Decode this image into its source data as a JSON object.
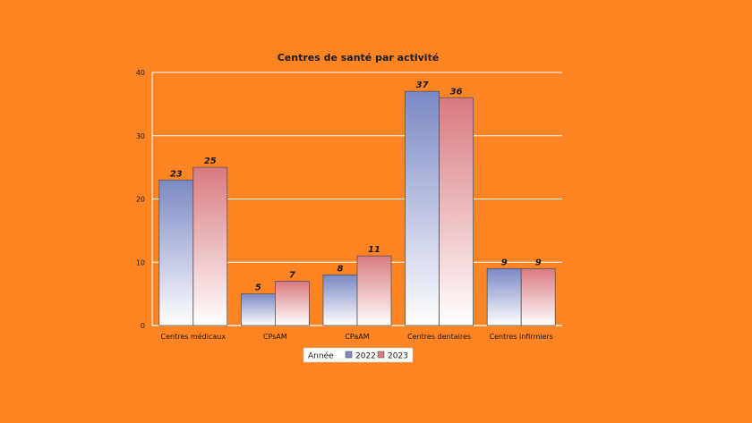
{
  "chart_data": {
    "type": "bar",
    "title": "Centres de santé par activité",
    "categories": [
      "Centres médicaux",
      "CPsAM",
      "CPaAM",
      "Centres dentaires",
      "Centres infirmiers"
    ],
    "series": [
      {
        "name": "2022",
        "values": [
          23,
          5,
          8,
          37,
          9
        ],
        "color": "#7b88c4"
      },
      {
        "name": "2023",
        "values": [
          25,
          7,
          11,
          36,
          9
        ],
        "color": "#d97a80"
      }
    ],
    "ylim": [
      0,
      40
    ],
    "yticks": [
      0,
      10,
      20,
      30,
      40
    ],
    "grid": true,
    "legend": {
      "title": "Année",
      "placement": "bottom-center"
    }
  }
}
